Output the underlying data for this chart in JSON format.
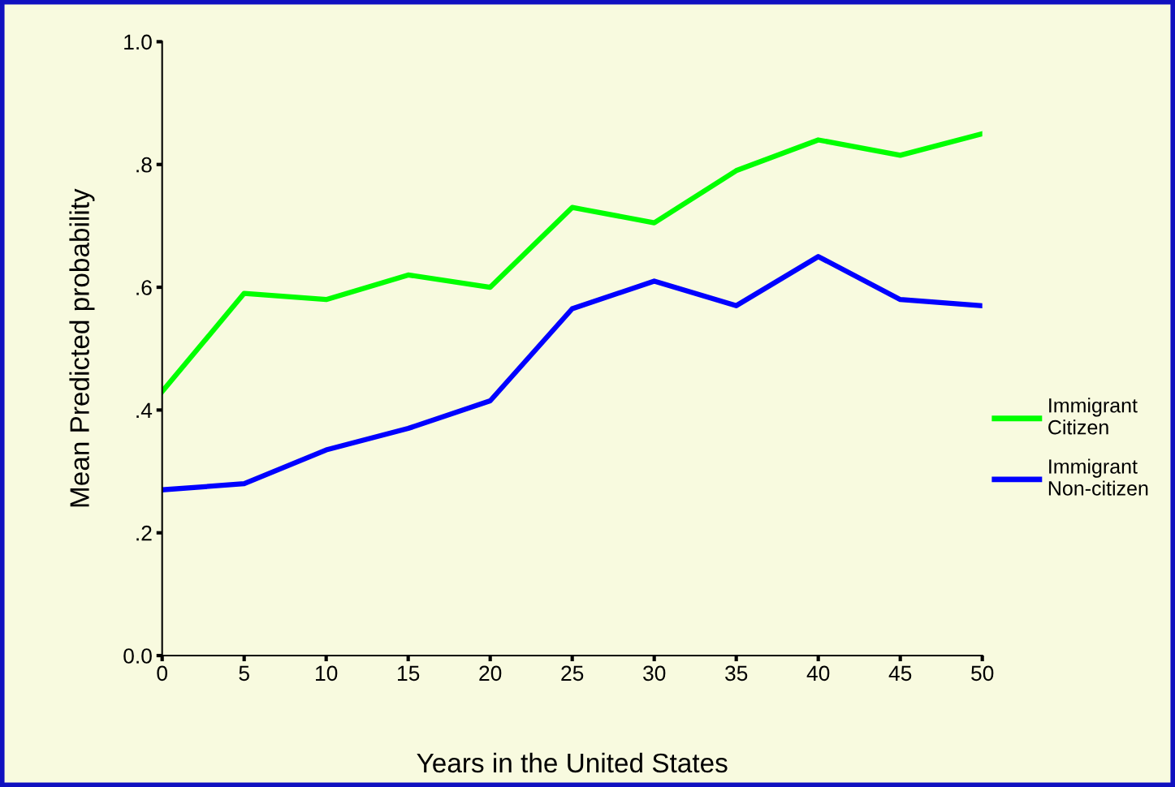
{
  "chart_data": {
    "type": "line",
    "xlabel": "Years in the United States",
    "ylabel": "Mean Predicted probability",
    "x": [
      0,
      5,
      10,
      15,
      20,
      25,
      30,
      35,
      40,
      45,
      50
    ],
    "series": [
      {
        "name": "Immigrant Citizen",
        "color": "#00ff00",
        "values": [
          0.43,
          0.59,
          0.58,
          0.62,
          0.6,
          0.73,
          0.705,
          0.79,
          0.84,
          0.815,
          0.85
        ]
      },
      {
        "name": "Immigrant Non-citizen",
        "color": "#0000ff",
        "values": [
          0.27,
          0.28,
          0.335,
          0.37,
          0.415,
          0.565,
          0.61,
          0.57,
          0.65,
          0.58,
          0.57
        ]
      }
    ],
    "xlim": [
      0,
      50
    ],
    "xticks": [
      0,
      5,
      10,
      15,
      20,
      25,
      30,
      35,
      40,
      45,
      50
    ],
    "ylim": [
      0,
      1
    ],
    "yticks": [
      {
        "value": 0,
        "label": "0.0"
      },
      {
        "value": 0.2,
        "label": ".2"
      },
      {
        "value": 0.4,
        "label": ".4"
      },
      {
        "value": 0.6,
        "label": ".6"
      },
      {
        "value": 0.8,
        "label": ".8"
      },
      {
        "value": 1,
        "label": "1.0"
      }
    ],
    "grid": false,
    "legend": "right",
    "marker": "none",
    "line_style": "solid"
  }
}
